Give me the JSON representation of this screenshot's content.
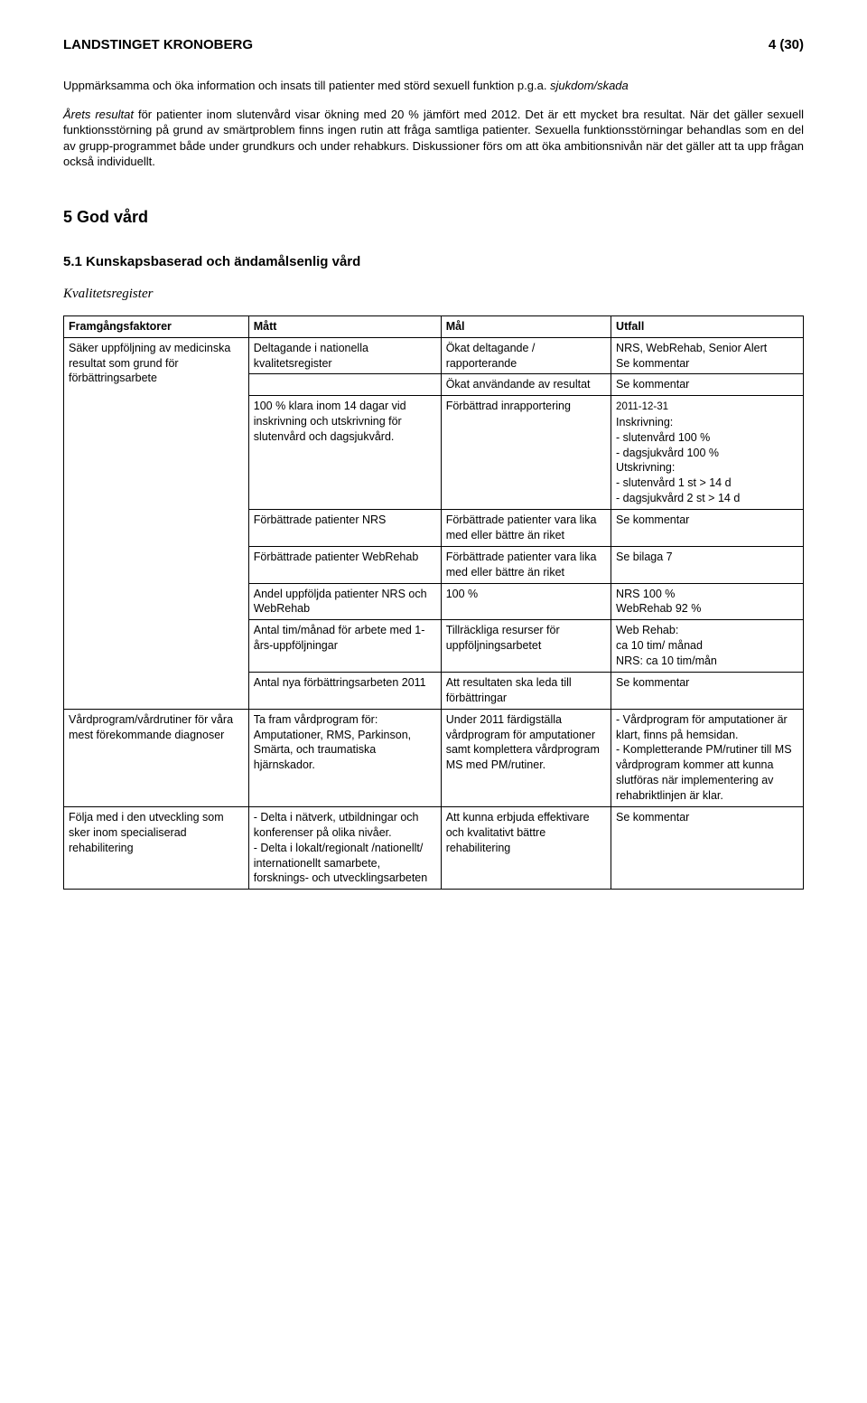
{
  "header": {
    "org": "LANDSTINGET KRONOBERG",
    "page": "4 (30)"
  },
  "intro": {
    "line1_plain": "Uppmärksamma och öka information och insats till patienter med störd sexuell funktion p.g.a. ",
    "line1_italic": "sjukdom/skada",
    "para2_prefix_italic": "Årets resultat",
    "para2_rest": " för patienter inom slutenvård visar ökning med 20 % jämfört med 2012. Det är ett mycket bra resultat. När det gäller sexuell funktionsstörning på grund av smärtproblem finns ingen rutin att fråga samtliga patienter. Sexuella funktionsstörningar behandlas som en del av grupp-programmet både under grundkurs och under rehabkurs. Diskussioner förs om att öka ambitionsnivån när det gäller att ta upp frågan också individuellt."
  },
  "section5": {
    "title": "5   God vård",
    "sub1": "5.1   Kunskapsbaserad och ändamålsenlig vård",
    "kvalitets": "Kvalitetsregister"
  },
  "table": {
    "headers": [
      "Framgångsfaktorer",
      "Mått",
      "Mål",
      "Utfall"
    ],
    "rows": [
      {
        "c1": "Säker uppföljning av medicinska resultat som grund för förbättringsarbete",
        "c2": "Deltagande i nationella kvalitetsregister",
        "c3": "Ökat deltagande / rapporterande",
        "c4": "NRS, WebRehab, Senior Alert\nSe kommentar"
      },
      {
        "c1": "",
        "c2": "",
        "c3": "Ökat användande av resultat",
        "c4": "Se kommentar"
      },
      {
        "c1": "",
        "c2": "100 % klara inom 14 dagar vid inskrivning och utskrivning för slutenvård och dagsjukvård.",
        "c3": "Förbättrad inrapportering",
        "c4_date": "2011-12-31",
        "c4_rest": "Inskrivning:\n - slutenvård 100 %\n - dagsjukvård 100 %\nUtskrivning:\n- slutenvård 1 st  > 14 d\n- dagsjukvård 2 st  > 14 d"
      },
      {
        "c1": "",
        "c2": "Förbättrade patienter NRS",
        "c3": "Förbättrade patienter vara lika med eller bättre än riket",
        "c4": "Se kommentar"
      },
      {
        "c1": "",
        "c2": "Förbättrade patienter WebRehab",
        "c3": "Förbättrade patienter vara lika med eller bättre än riket",
        "c4": "Se bilaga 7"
      },
      {
        "c1": "",
        "c2": "Andel uppföljda patienter NRS och WebRehab",
        "c3": "100 %",
        "c4": "NRS 100 %\nWebRehab 92 %"
      },
      {
        "c1": "",
        "c2": "Antal tim/månad för arbete med 1-års-uppföljningar",
        "c3": "Tillräckliga resurser för uppföljningsarbetet",
        "c4": "Web Rehab:\nca 10 tim/ månad\nNRS: ca 10 tim/mån"
      },
      {
        "c1": "",
        "c2": "Antal nya förbättringsarbeten 2011",
        "c3": "Att resultaten ska leda till förbättringar",
        "c4": "Se kommentar"
      },
      {
        "c1": "Vårdprogram/vårdrutiner för våra mest förekommande diagnoser",
        "c2": "Ta fram vårdprogram för: Amputationer, RMS, Parkinson, Smärta, och traumatiska hjärnskador.",
        "c3": "Under 2011 färdigställa vårdprogram för amputationer samt komplettera vårdprogram MS med PM/rutiner.",
        "c4": "- Vårdprogram för amputationer är klart, finns på hemsidan.\n- Kompletterande PM/rutiner till MS vårdprogram kommer att kunna slutföras när implementering av rehabriktlinjen är klar."
      },
      {
        "c1": "Följa med i den utveckling som sker inom specialiserad rehabilitering",
        "c2": "- Delta i nätverk, utbildningar och konferenser på olika nivåer.\n - Delta i lokalt/regionalt /nationellt/ internationellt samarbete, forsknings- och utvecklingsarbeten",
        "c3": "Att kunna erbjuda effektivare och kvalitativt bättre rehabilitering",
        "c4": "Se kommentar"
      }
    ]
  }
}
